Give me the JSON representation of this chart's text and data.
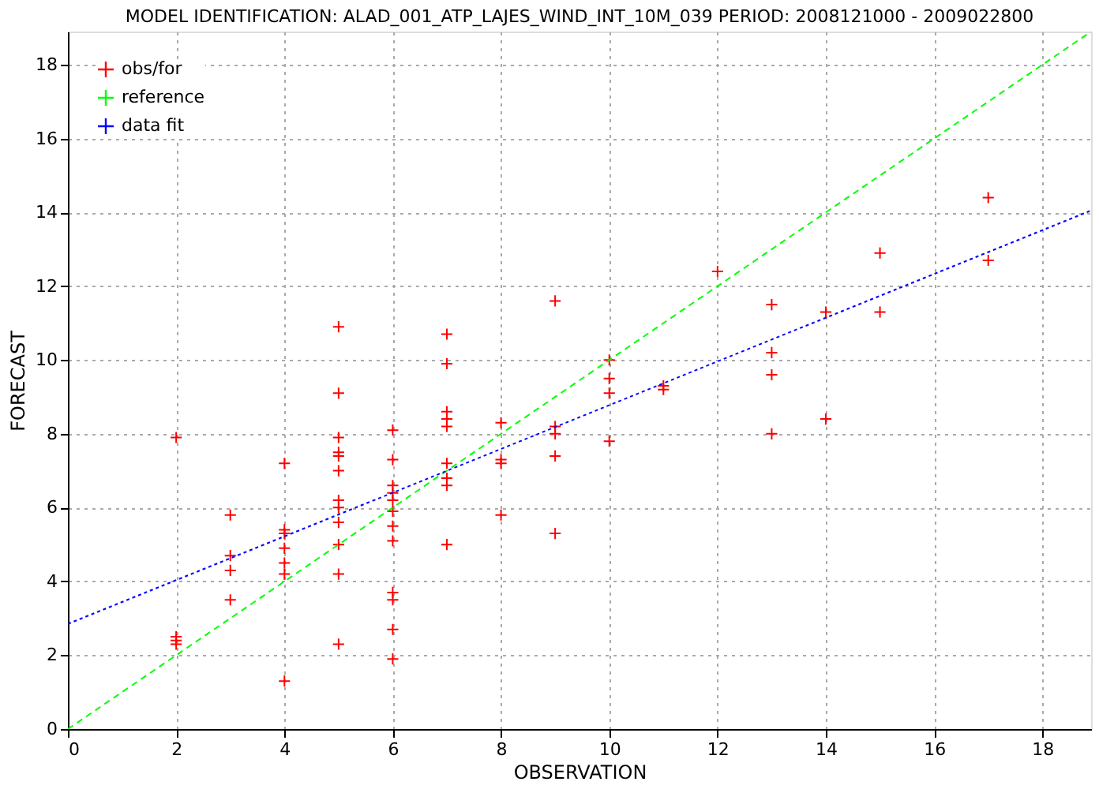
{
  "chart_data": {
    "type": "scatter",
    "title": "MODEL IDENTIFICATION: ALAD_001_ATP_LAJES_WIND_INT_10M_039 PERIOD: 2008121000 - 2009022800",
    "xlabel": "OBSERVATION",
    "ylabel": "FORECAST",
    "xlim": [
      0,
      18.9
    ],
    "ylim": [
      0,
      18.9
    ],
    "xticks": [
      0,
      2,
      4,
      6,
      8,
      10,
      12,
      14,
      16,
      18
    ],
    "yticks": [
      0,
      2,
      4,
      6,
      8,
      10,
      12,
      14,
      16,
      18
    ],
    "grid": true,
    "legend": "top left",
    "series": [
      {
        "name": "obs/for",
        "color": "#ff0000",
        "marker": "cross",
        "x": [
          2,
          2,
          2,
          2,
          3,
          3,
          3,
          3,
          4,
          4,
          4,
          4,
          4,
          4,
          4,
          5,
          5,
          5,
          5,
          5,
          5,
          5,
          5,
          5,
          5,
          5,
          5,
          6,
          6,
          6,
          6,
          6,
          6,
          6,
          6,
          6,
          6,
          6,
          6,
          7,
          7,
          7,
          7,
          7,
          7,
          7,
          7,
          7,
          8,
          8,
          8,
          8,
          9,
          9,
          9,
          9,
          9,
          10,
          10,
          10,
          10,
          11,
          11,
          12,
          13,
          13,
          13,
          13,
          14,
          14,
          15,
          15,
          17,
          17
        ],
        "values": [
          7.9,
          2.5,
          2.4,
          2.3,
          5.8,
          4.7,
          4.3,
          3.5,
          7.2,
          5.4,
          5.3,
          4.9,
          4.5,
          4.2,
          1.3,
          10.9,
          9.1,
          7.9,
          7.5,
          7.4,
          7.0,
          6.2,
          6.0,
          5.6,
          5.0,
          4.2,
          2.3,
          8.1,
          7.3,
          6.6,
          6.4,
          6.2,
          5.9,
          5.5,
          5.1,
          3.7,
          3.5,
          2.7,
          1.9,
          10.7,
          9.9,
          8.6,
          8.4,
          8.2,
          7.2,
          6.8,
          6.6,
          5.0,
          8.3,
          7.3,
          7.2,
          5.8,
          11.6,
          8.2,
          8.0,
          7.4,
          5.3,
          10.0,
          9.5,
          9.1,
          7.8,
          9.3,
          9.2,
          12.4,
          11.5,
          10.2,
          9.6,
          8.0,
          11.3,
          8.4,
          12.9,
          11.3,
          14.4,
          12.7
        ]
      },
      {
        "name": "reference",
        "type": "line",
        "color": "#00ff00",
        "line_style": "dashed",
        "x": [
          0,
          18.9
        ],
        "values": [
          0,
          18.9
        ]
      },
      {
        "name": "data fit",
        "type": "line",
        "color": "#0000ff",
        "line_style": "dotted",
        "x": [
          0,
          18.9
        ],
        "values": [
          2.85,
          14.05
        ]
      }
    ]
  }
}
